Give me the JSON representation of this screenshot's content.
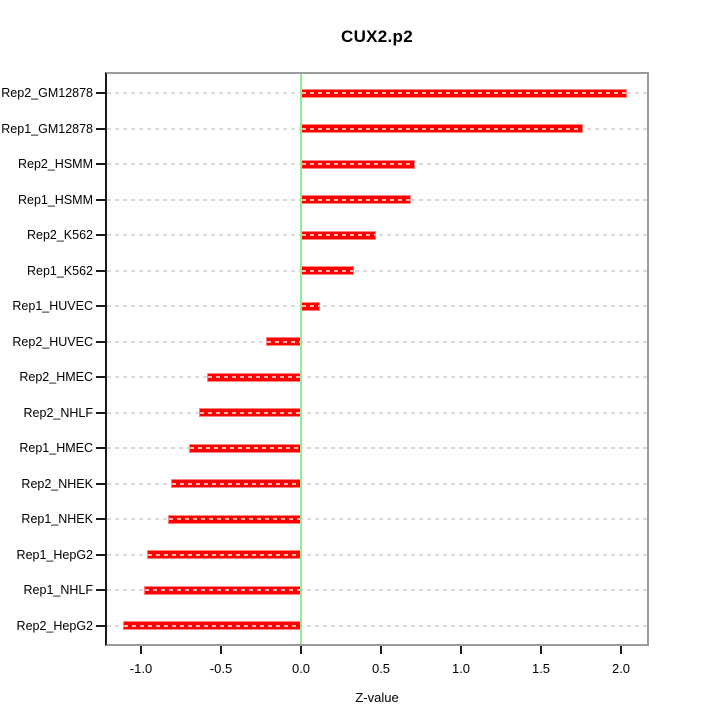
{
  "chart_data": {
    "type": "bar",
    "orientation": "horizontal",
    "title": "CUX2.p2",
    "xlabel": "Z-value",
    "ylabel": "",
    "categories": [
      "Rep2_GM12878",
      "Rep1_GM12878",
      "Rep2_HSMM",
      "Rep1_HSMM",
      "Rep2_K562",
      "Rep1_K562",
      "Rep1_HUVEC",
      "Rep2_HUVEC",
      "Rep2_HMEC",
      "Rep2_NHLF",
      "Rep1_HMEC",
      "Rep2_NHEK",
      "Rep1_NHEK",
      "Rep1_HepG2",
      "Rep1_NHLF",
      "Rep2_HepG2"
    ],
    "values": [
      2.04,
      1.76,
      0.71,
      0.69,
      0.47,
      0.33,
      0.12,
      -0.22,
      -0.59,
      -0.64,
      -0.7,
      -0.81,
      -0.83,
      -0.96,
      -0.98,
      -1.11
    ],
    "x_ticks": [
      "-1.0",
      "-0.5",
      "0.0",
      "0.5",
      "1.0",
      "1.5",
      "2.0"
    ],
    "xlim": [
      -1.22,
      2.17
    ],
    "grid": true,
    "grid_style": "dashed",
    "legend_position": "none",
    "bar_color": "#ff0000",
    "bar_border_color": "#ff8080",
    "bar_dash_color": "#ffb3b3",
    "zero_line_color": "#90ee90",
    "grid_color": "#dadada",
    "box_color": "#9b9b9b",
    "axis_color": "#1a1a1a",
    "text_color": "#000000",
    "background_color": "#ffffff"
  }
}
